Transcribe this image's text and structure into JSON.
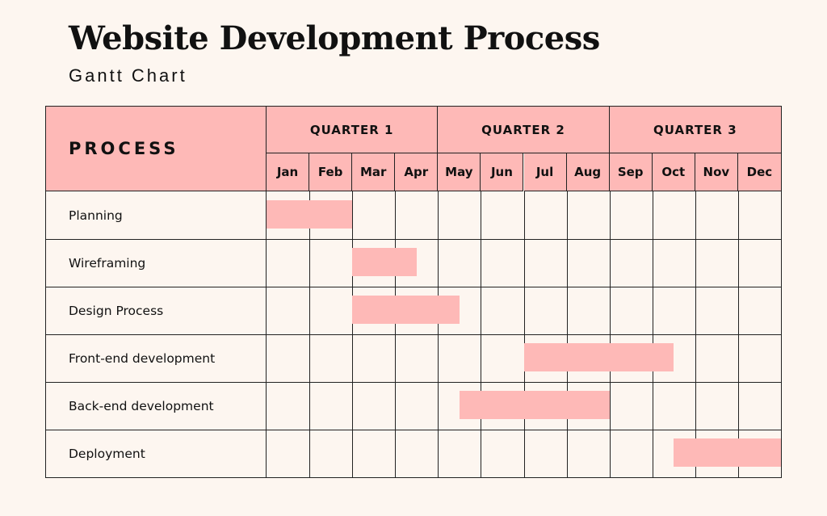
{
  "title": "Website Development Process",
  "subtitle": "Gantt Chart",
  "colors": {
    "background": "#fdf6f0",
    "header": "#feb9b7",
    "bar": "#feb9b7",
    "grid": "#222222"
  },
  "chart_data": {
    "type": "gantt",
    "title": "Website Development Process",
    "subtitle": "Gantt Chart",
    "row_header": "PROCESS",
    "quarters": [
      {
        "label": "QUARTER 1",
        "months": 4
      },
      {
        "label": "QUARTER 2",
        "months": 4
      },
      {
        "label": "QUARTER 3",
        "months": 4
      }
    ],
    "months": [
      "Jan",
      "Feb",
      "Mar",
      "Apr",
      "May",
      "Jun",
      "Jul",
      "Aug",
      "Sep",
      "Oct",
      "Nov",
      "Dec"
    ],
    "tasks": [
      {
        "name": "Planning",
        "start": 0.0,
        "end": 2.0
      },
      {
        "name": "Wireframing",
        "start": 2.0,
        "end": 3.5
      },
      {
        "name": "Design Process",
        "start": 2.0,
        "end": 4.5
      },
      {
        "name": "Front-end development",
        "start": 6.0,
        "end": 9.5
      },
      {
        "name": "Back-end development",
        "start": 4.5,
        "end": 8.0
      },
      {
        "name": "Deployment",
        "start": 9.5,
        "end": 12.0
      }
    ]
  }
}
